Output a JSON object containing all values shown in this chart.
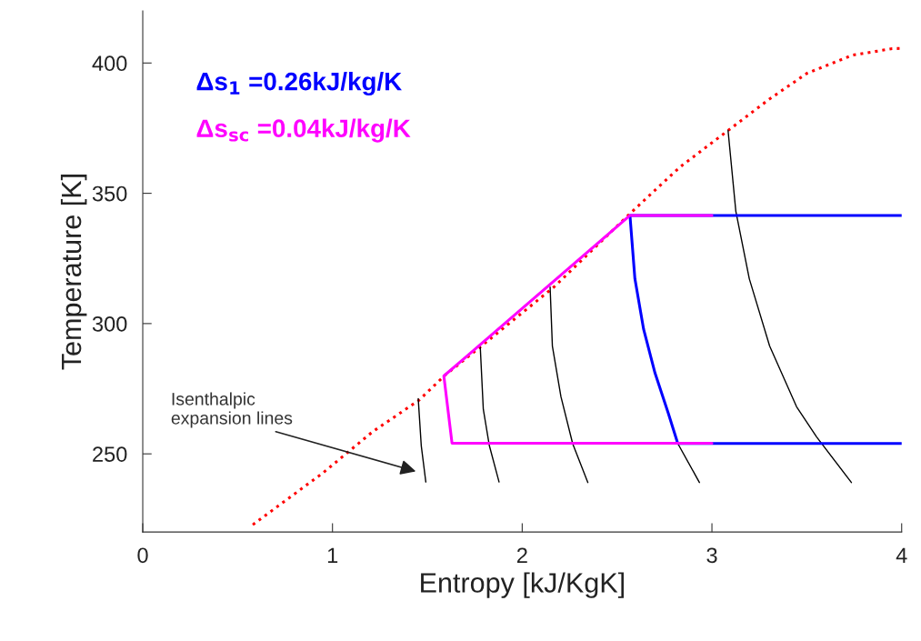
{
  "chart_data": {
    "type": "line",
    "xlabel": "Entropy [kJ/KgK]",
    "ylabel": "Temperature [K]",
    "xlim": [
      0,
      4
    ],
    "ylim": [
      220,
      420
    ],
    "xticks": [
      0,
      1,
      2,
      3,
      4
    ],
    "yticks": [
      250,
      300,
      350,
      400
    ],
    "grid": false,
    "legend": "top left",
    "annotations": [
      "Isenthalpic\nexpansion lines"
    ],
    "series": [
      {
        "color": "#ff0000",
        "line_style": "dotted",
        "x": [
          0.58,
          0.95,
          1.21,
          1.456,
          1.595,
          1.787,
          2.17,
          2.568,
          2.83,
          3.085,
          3.3,
          3.5,
          3.74,
          3.95,
          4.0
        ],
        "values": [
          222.8,
          242.7,
          258.4,
          270.6,
          280.3,
          291.5,
          314.2,
          342.2,
          360,
          374.1,
          386,
          396,
          403,
          405.5,
          405.6
        ]
      },
      {
        "color": "#000000",
        "x": [
          1.452,
          1.468,
          1.492
        ],
        "values": [
          271.2,
          253.1,
          239.2
        ]
      },
      {
        "color": "#000000",
        "x": [
          1.779,
          1.795,
          1.827,
          1.878
        ],
        "values": [
          290.9,
          267.1,
          253.1,
          239.2
        ]
      },
      {
        "color": "#000000",
        "x": [
          2.147,
          2.159,
          2.204,
          2.266,
          2.346
        ],
        "values": [
          314,
          291.4,
          272,
          253.9,
          239
        ]
      },
      {
        "color": "#000000",
        "x": [
          2.82,
          2.934
        ],
        "values": [
          254,
          239
        ]
      },
      {
        "color": "#000000",
        "x": [
          3.085,
          3.126,
          3.197,
          3.304,
          3.446,
          3.552,
          3.735
        ],
        "values": [
          374.1,
          343.1,
          317.2,
          291.4,
          268.1,
          256.5,
          239
        ]
      },
      {
        "name": "Δs$_{1}$ =0.26kJ/kg/K",
        "color": "#0000ff",
        "x": [
          4.0,
          2.568,
          2.594,
          2.64,
          2.7,
          2.77,
          2.82,
          4.0
        ],
        "values": [
          341.5,
          341.5,
          317.2,
          297.8,
          281,
          265.6,
          254,
          254
        ]
      },
      {
        "name": "Δs$_{sc}$ =0.04kJ/kg/K",
        "color": "#ff00ff",
        "x": [
          3.0,
          2.568,
          1.587,
          1.63,
          3.0
        ],
        "values": [
          341.5,
          341.5,
          279.9,
          254.1,
          254.1
        ]
      }
    ]
  }
}
